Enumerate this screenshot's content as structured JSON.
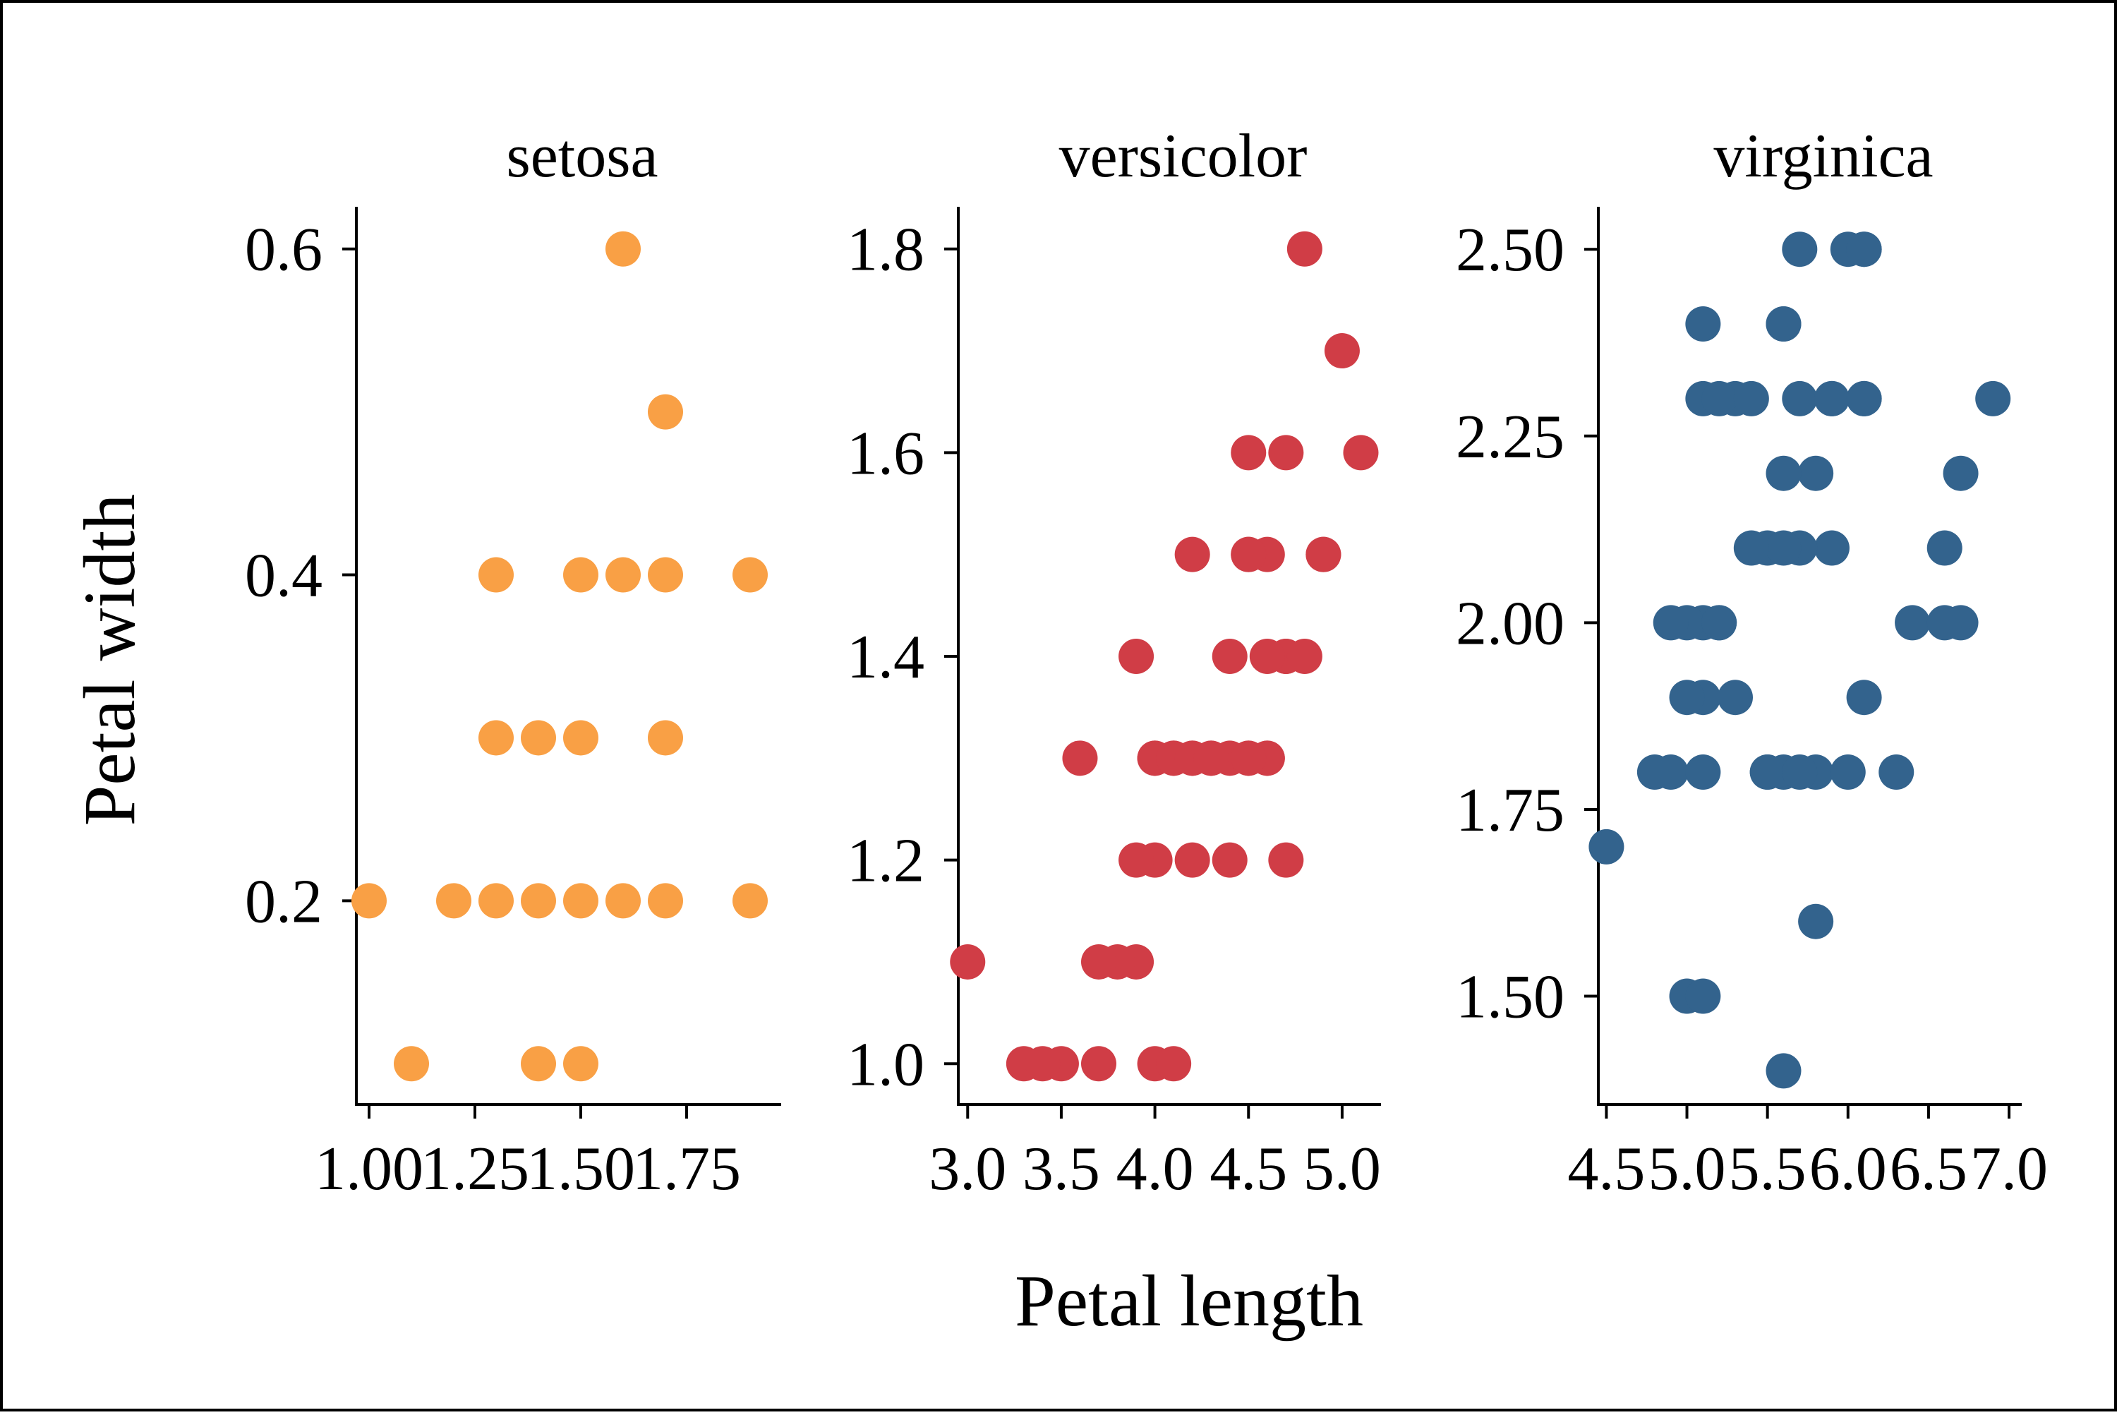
{
  "chart_data": {
    "type": "scatter",
    "xlabel": "Petal length",
    "ylabel": "Petal width",
    "grid": false,
    "legend": "none",
    "panels": [
      {
        "title": "setosa",
        "color": "#F9A045",
        "xticks": [
          "1.00",
          "1.25",
          "1.50",
          "1.75"
        ],
        "yticks": [
          "0.2",
          "0.4",
          "0.6"
        ],
        "xlim": [
          0.97,
          1.97
        ],
        "ylim": [
          0.075,
          0.625
        ],
        "points": [
          [
            1.4,
            0.2
          ],
          [
            1.3,
            0.2
          ],
          [
            1.5,
            0.2
          ],
          [
            1.7,
            0.4
          ],
          [
            1.4,
            0.3
          ],
          [
            1.5,
            0.1
          ],
          [
            1.6,
            0.2
          ],
          [
            1.1,
            0.1
          ],
          [
            1.2,
            0.2
          ],
          [
            1.3,
            0.4
          ],
          [
            1.0,
            0.2
          ],
          [
            1.7,
            0.5
          ],
          [
            1.9,
            0.2
          ],
          [
            1.6,
            0.4
          ],
          [
            1.5,
            0.4
          ],
          [
            1.4,
            0.1
          ],
          [
            1.7,
            0.3
          ],
          [
            1.5,
            0.3
          ],
          [
            1.3,
            0.3
          ],
          [
            1.6,
            0.6
          ],
          [
            1.9,
            0.4
          ],
          [
            1.7,
            0.2
          ]
        ]
      },
      {
        "title": "versicolor",
        "color": "#D03D46",
        "xticks": [
          "3.0",
          "3.5",
          "4.0",
          "4.5",
          "5.0"
        ],
        "yticks": [
          "1.0",
          "1.2",
          "1.4",
          "1.6",
          "1.8"
        ],
        "xlim": [
          2.95,
          5.2
        ],
        "ylim": [
          0.96,
          1.84
        ],
        "points": [
          [
            4.7,
            1.4
          ],
          [
            4.5,
            1.5
          ],
          [
            4.9,
            1.5
          ],
          [
            4.0,
            1.3
          ],
          [
            4.6,
            1.5
          ],
          [
            4.5,
            1.3
          ],
          [
            4.7,
            1.6
          ],
          [
            3.3,
            1.0
          ],
          [
            4.6,
            1.3
          ],
          [
            3.9,
            1.4
          ],
          [
            3.5,
            1.0
          ],
          [
            4.2,
            1.5
          ],
          [
            4.0,
            1.0
          ],
          [
            4.7,
            1.4
          ],
          [
            3.6,
            1.3
          ],
          [
            4.4,
            1.4
          ],
          [
            4.1,
            1.0
          ],
          [
            4.5,
            1.5
          ],
          [
            3.9,
            1.1
          ],
          [
            4.8,
            1.8
          ],
          [
            4.0,
            1.3
          ],
          [
            4.9,
            1.5
          ],
          [
            4.3,
            1.3
          ],
          [
            4.4,
            1.3
          ],
          [
            5.0,
            1.7
          ],
          [
            3.8,
            1.1
          ],
          [
            3.7,
            1.0
          ],
          [
            5.1,
            1.6
          ],
          [
            4.5,
            1.6
          ],
          [
            4.6,
            1.4
          ],
          [
            3.0,
            1.1
          ],
          [
            4.2,
            1.2
          ],
          [
            4.2,
            1.3
          ],
          [
            4.1,
            1.3
          ],
          [
            4.4,
            1.2
          ],
          [
            4.0,
            1.2
          ],
          [
            4.7,
            1.2
          ],
          [
            4.1,
            1.3
          ],
          [
            3.9,
            1.2
          ],
          [
            4.8,
            1.4
          ],
          [
            3.4,
            1.0
          ],
          [
            3.7,
            1.1
          ],
          [
            4.2,
            1.3
          ],
          [
            4.6,
            1.3
          ],
          [
            4.3,
            1.3
          ],
          [
            4.5,
            1.3
          ]
        ]
      },
      {
        "title": "virginica",
        "color": "#33638D",
        "xticks": [
          "4.5",
          "5.0",
          "5.5",
          "6.0",
          "6.5",
          "7.0"
        ],
        "yticks": [
          "1.50",
          "1.75",
          "2.00",
          "2.25",
          "2.50"
        ],
        "xlim": [
          4.45,
          7.07
        ],
        "ylim": [
          1.355,
          2.555
        ],
        "points": [
          [
            6.0,
            2.5
          ],
          [
            5.1,
            1.9
          ],
          [
            5.9,
            2.1
          ],
          [
            5.6,
            1.8
          ],
          [
            5.8,
            2.2
          ],
          [
            6.6,
            2.1
          ],
          [
            4.5,
            1.7
          ],
          [
            6.3,
            1.8
          ],
          [
            5.8,
            1.8
          ],
          [
            6.1,
            2.5
          ],
          [
            5.1,
            2.0
          ],
          [
            5.3,
            1.9
          ],
          [
            5.5,
            2.1
          ],
          [
            5.0,
            2.0
          ],
          [
            5.1,
            2.4
          ],
          [
            5.3,
            2.3
          ],
          [
            5.5,
            1.8
          ],
          [
            6.7,
            2.2
          ],
          [
            6.9,
            2.3
          ],
          [
            5.0,
            1.5
          ],
          [
            5.7,
            2.3
          ],
          [
            4.9,
            2.0
          ],
          [
            6.7,
            2.0
          ],
          [
            4.9,
            1.8
          ],
          [
            5.7,
            2.1
          ],
          [
            6.0,
            1.8
          ],
          [
            4.8,
            1.8
          ],
          [
            5.6,
            2.1
          ],
          [
            5.8,
            1.6
          ],
          [
            6.1,
            1.9
          ],
          [
            6.4,
            2.0
          ],
          [
            5.6,
            2.2
          ],
          [
            5.1,
            1.5
          ],
          [
            5.6,
            1.4
          ],
          [
            6.1,
            2.3
          ],
          [
            5.6,
            2.4
          ],
          [
            5.5,
            1.8
          ],
          [
            5.4,
            2.1
          ],
          [
            5.6,
            2.4
          ],
          [
            5.1,
            2.3
          ],
          [
            5.9,
            2.3
          ],
          [
            5.7,
            2.5
          ],
          [
            5.2,
            2.3
          ],
          [
            5.0,
            1.9
          ],
          [
            5.2,
            2.0
          ],
          [
            5.4,
            2.3
          ],
          [
            5.1,
            1.8
          ],
          [
            6.1,
            2.5
          ],
          [
            6.6,
            2.0
          ],
          [
            5.9,
            2.3
          ],
          [
            5.2,
            2.0
          ],
          [
            5.7,
            1.8
          ],
          [
            6.1,
            2.3
          ]
        ]
      }
    ]
  }
}
